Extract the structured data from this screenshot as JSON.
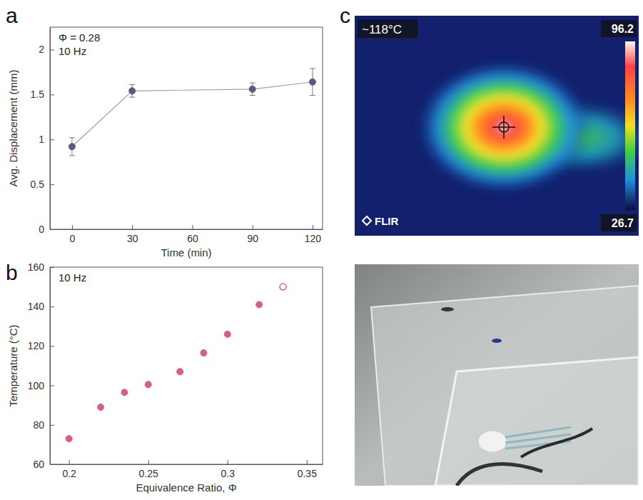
{
  "chart_data": [
    {
      "type": "line",
      "panel_label": "a",
      "x_label": "Time (min)",
      "y_label": "Avg. Displacement (mm)",
      "annotations": [
        "Φ = 0.28",
        "10 Hz"
      ],
      "x": [
        0,
        30,
        90,
        120
      ],
      "series": [
        {
          "values": [
            0.92,
            1.54,
            1.56,
            1.64
          ],
          "errors": [
            0.1,
            0.07,
            0.07,
            0.15
          ],
          "color": "#5b5b7e",
          "marker": "circle",
          "line_style": "solid"
        }
      ],
      "xlim": [
        -11,
        125
      ],
      "xticks": [
        0,
        30,
        60,
        90,
        120
      ],
      "ylim": [
        0,
        2.25
      ],
      "yticks": [
        0,
        0.5,
        1,
        1.5,
        2
      ]
    },
    {
      "type": "scatter",
      "panel_label": "b",
      "x_label": "Equivalence Ratio, Φ",
      "y_label": "Temperature (°C)",
      "annotations": [
        "10 Hz"
      ],
      "series": [
        {
          "x": [
            0.2,
            0.22,
            0.235,
            0.25,
            0.27,
            0.285,
            0.3,
            0.32
          ],
          "values": [
            73,
            89,
            96.5,
            100.5,
            107,
            116.5,
            126,
            141
          ],
          "color": "#d9607a",
          "marker": "circle"
        },
        {
          "x": [
            0.335
          ],
          "values": [
            150
          ],
          "color": "#d9607a",
          "marker": "open-circle"
        }
      ],
      "xlim": [
        0.188,
        0.36
      ],
      "xticks": [
        0.2,
        0.25,
        0.3,
        0.35
      ],
      "ylim": [
        60,
        160
      ],
      "yticks": [
        60,
        80,
        100,
        120,
        140,
        160
      ]
    }
  ],
  "image_panel": {
    "panel_label": "c",
    "thermal_image": {
      "readout": "~118°C",
      "scale_max": "96.2",
      "scale_min": "26.7",
      "brand": "FLIR"
    }
  }
}
